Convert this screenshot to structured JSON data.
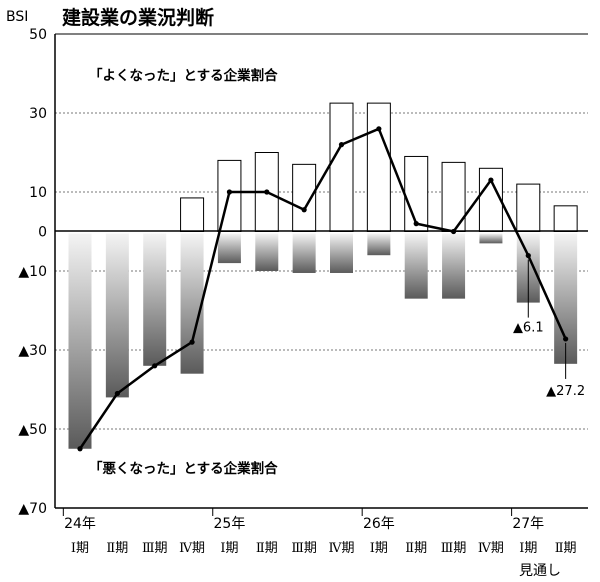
{
  "chart_data": {
    "type": "bar",
    "title": "建設業の業況判断",
    "ylabel": "BSI",
    "ylim": [
      -70,
      50
    ],
    "yticks": [
      {
        "value": 50,
        "label": "50"
      },
      {
        "value": 30,
        "label": "30"
      },
      {
        "value": 10,
        "label": "10"
      },
      {
        "value": 0,
        "label": "0"
      },
      {
        "value": -10,
        "label": "▲10"
      },
      {
        "value": -30,
        "label": "▲30"
      },
      {
        "value": -50,
        "label": "▲50"
      },
      {
        "value": -70,
        "label": "▲70"
      }
    ],
    "grid": true,
    "categories": [
      "Ⅰ期",
      "Ⅱ期",
      "Ⅲ期",
      "Ⅳ期",
      "Ⅰ期",
      "Ⅱ期",
      "Ⅲ期",
      "Ⅳ期",
      "Ⅰ期",
      "Ⅱ期",
      "Ⅲ期",
      "Ⅳ期",
      "Ⅰ期",
      "Ⅱ期"
    ],
    "year_labels": [
      {
        "index": 0,
        "label": "24年"
      },
      {
        "index": 4,
        "label": "25年"
      },
      {
        "index": 8,
        "label": "26年"
      },
      {
        "index": 12,
        "label": "27年"
      }
    ],
    "forecast_label": "見通し",
    "series": [
      {
        "name": "「よくなった」とする企業割合",
        "values": [
          0,
          0,
          0,
          8.5,
          18,
          20,
          17,
          32.5,
          32.5,
          19,
          17.5,
          16,
          12,
          6.5
        ]
      },
      {
        "name": "「悪くなった」とする企業割合",
        "values": [
          -55,
          -42,
          -34,
          -36,
          -8,
          -10,
          -10.5,
          -10.5,
          -6,
          -17,
          -17,
          -3,
          -18,
          -33.5
        ]
      },
      {
        "name": "BSI",
        "values": [
          -55,
          -41,
          -34,
          -28,
          10,
          10,
          5.5,
          22,
          26,
          2,
          0,
          13,
          -6.1,
          -27.2
        ]
      }
    ],
    "annotations": [
      {
        "index": 12,
        "label": "▲6.1"
      },
      {
        "index": 13,
        "label": "▲27.2"
      }
    ]
  }
}
